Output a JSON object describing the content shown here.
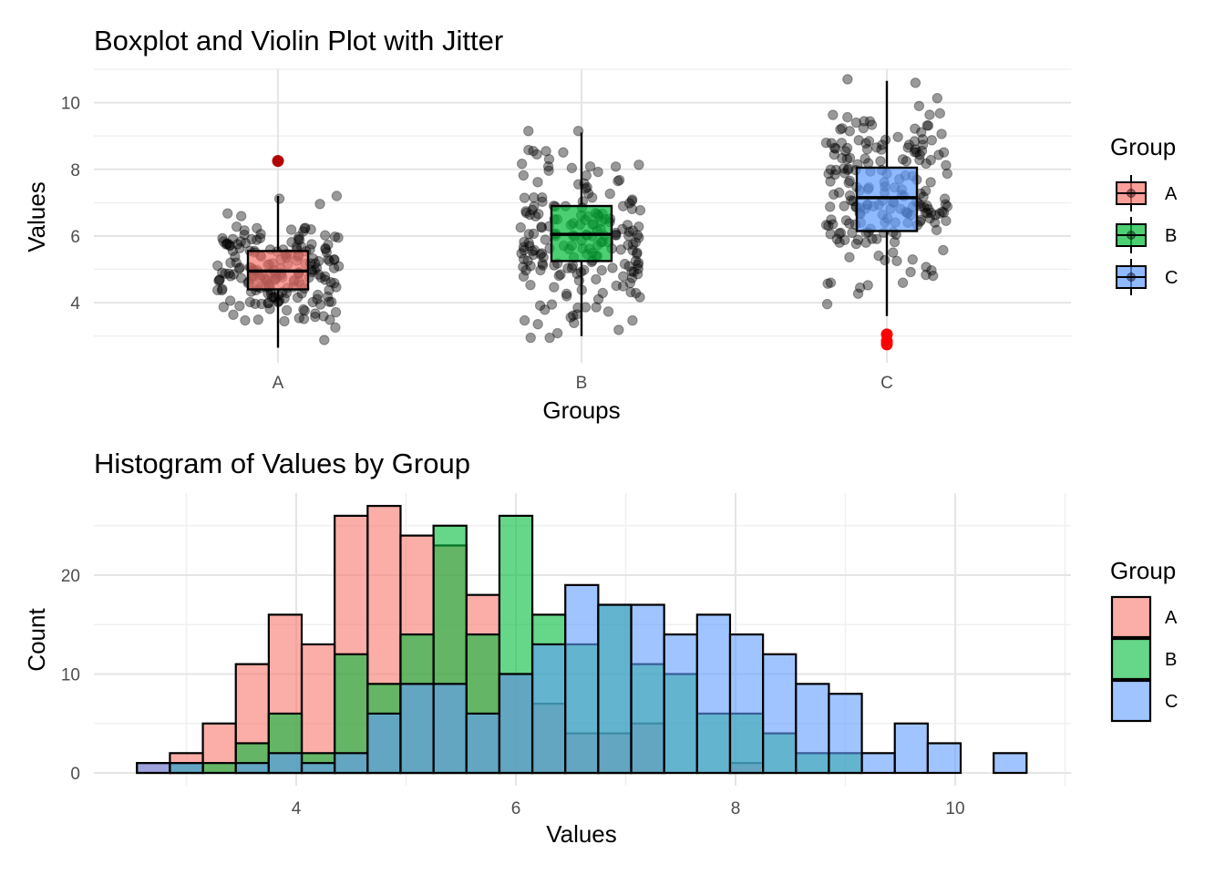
{
  "chart_data": [
    {
      "type": "boxplot",
      "title": "Boxplot and Violin Plot with Jitter",
      "xlabel": "Groups",
      "ylabel": "Values",
      "categories": [
        "A",
        "B",
        "C"
      ],
      "yticks": [
        4,
        6,
        8,
        10
      ],
      "ylim": [
        2.2,
        11
      ],
      "grid": true,
      "legend": {
        "title": "Group",
        "position": "right",
        "entries": [
          "A",
          "B",
          "C"
        ]
      },
      "colors": {
        "A": "#F8766D",
        "B": "#00BA38",
        "C": "#619CFF"
      },
      "boxes": [
        {
          "group": "A",
          "whisker_low": 2.65,
          "q1": 4.4,
          "median": 4.95,
          "q3": 5.55,
          "whisker_high": 7.2,
          "outliers": [
            8.25
          ]
        },
        {
          "group": "B",
          "whisker_low": 3.0,
          "q1": 5.25,
          "median": 6.05,
          "q3": 6.9,
          "whisker_high": 9.1,
          "outliers": []
        },
        {
          "group": "C",
          "whisker_low": 3.6,
          "q1": 6.15,
          "median": 7.15,
          "q3": 8.05,
          "whisker_high": 10.65,
          "outliers": [
            3.05,
            2.85,
            2.75
          ]
        }
      ],
      "jitter_points_per_group": 200
    },
    {
      "type": "histogram",
      "title": "Histogram of Values by Group",
      "xlabel": "Values",
      "ylabel": "Count",
      "xticks": [
        4,
        6,
        8,
        10
      ],
      "yticks": [
        0,
        10,
        20
      ],
      "xlim": [
        2.2,
        11
      ],
      "ylim": [
        -1,
        28.5
      ],
      "bin_width": 0.3,
      "grid": true,
      "legend": {
        "title": "Group",
        "position": "right",
        "entries": [
          "A",
          "B",
          "C"
        ]
      },
      "colors": {
        "A": "#F8766D",
        "B": "#00BA38",
        "C": "#619CFF"
      },
      "bins_start": [
        2.55,
        2.85,
        3.15,
        3.45,
        3.75,
        4.05,
        4.35,
        4.65,
        4.95,
        5.25,
        5.55,
        5.85,
        6.15,
        6.45,
        6.75,
        7.05,
        7.35,
        7.65,
        7.95,
        8.25,
        8.55,
        8.85,
        9.15,
        9.45,
        9.75,
        10.05,
        10.35
      ],
      "series": [
        {
          "name": "A",
          "values": [
            1,
            2,
            5,
            11,
            16,
            13,
            26,
            27,
            24,
            23,
            18,
            10,
            7,
            4,
            4,
            5,
            0,
            0,
            1,
            0,
            0,
            0,
            0,
            0,
            0,
            0,
            0
          ]
        },
        {
          "name": "B",
          "values": [
            0,
            1,
            1,
            3,
            6,
            2,
            12,
            9,
            14,
            25,
            14,
            26,
            16,
            13,
            17,
            11,
            10,
            6,
            6,
            4,
            2,
            2,
            0,
            0,
            0,
            0,
            0
          ]
        },
        {
          "name": "C",
          "values": [
            1,
            1,
            0,
            1,
            2,
            1,
            2,
            6,
            9,
            9,
            6,
            10,
            13,
            19,
            17,
            17,
            14,
            16,
            14,
            12,
            9,
            8,
            2,
            5,
            3,
            0,
            2
          ]
        }
      ]
    }
  ]
}
